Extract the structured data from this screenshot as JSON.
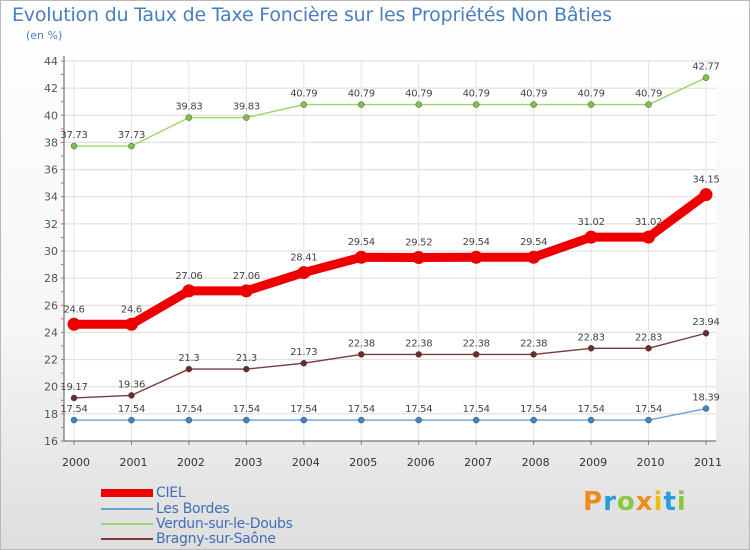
{
  "title": "Evolution du Taux de Taxe Foncière sur les Propriétés Non Bâties",
  "unit_label": "(en %)",
  "logo_text": "Proxiti",
  "logo_colors": [
    "#f08a1c",
    "#2b9be0",
    "#8cc63f",
    "#f08a1c",
    "#e8c012",
    "#2b9be0",
    "#8cc63f"
  ],
  "chart_data": {
    "type": "line",
    "title": "Evolution du Taux de Taxe Foncière sur les Propriétés Non Bâties",
    "ylabel": "(en %)",
    "xlabel": "",
    "categories": [
      "2000",
      "2001",
      "2002",
      "2003",
      "2004",
      "2005",
      "2006",
      "2007",
      "2008",
      "2009",
      "2010",
      "2011"
    ],
    "ylim": [
      16,
      44
    ],
    "yticks": [
      16,
      18,
      20,
      22,
      24,
      26,
      28,
      30,
      32,
      34,
      36,
      38,
      40,
      42,
      44
    ],
    "grid": true,
    "legend_position": "bottom-left",
    "series": [
      {
        "name": "Verdun-sur-le-Doubs",
        "color": "#9ad86a",
        "marker": "#7cc443",
        "weight": "thin",
        "values": [
          37.73,
          37.73,
          39.83,
          39.83,
          40.79,
          40.79,
          40.79,
          40.79,
          40.79,
          40.79,
          40.79,
          42.77
        ],
        "labels": [
          "37.73",
          "37.73",
          "39.83",
          "39.83",
          "40.79",
          "40.79",
          "40.79",
          "40.79",
          "40.79",
          "40.79",
          "40.79",
          "42.77"
        ]
      },
      {
        "name": "CIEL",
        "color": "#ee0000",
        "marker": "#ee0000",
        "weight": "thick",
        "values": [
          24.6,
          24.6,
          27.06,
          27.06,
          28.41,
          29.54,
          29.52,
          29.54,
          29.54,
          31.02,
          31.02,
          34.15
        ],
        "labels": [
          "24.6",
          "24.6",
          "27.06",
          "27.06",
          "28.41",
          "29.54",
          "29.52",
          "29.54",
          "29.54",
          "31.02",
          "31.02",
          "34.15"
        ]
      },
      {
        "name": "Bragny-sur-Saône",
        "color": "#7a3a3a",
        "marker": "#6e2b2b",
        "weight": "thin",
        "values": [
          19.17,
          19.36,
          21.3,
          21.3,
          21.73,
          22.38,
          22.38,
          22.38,
          22.38,
          22.83,
          22.83,
          23.94
        ],
        "labels": [
          "19.17",
          "19.36",
          "21.3",
          "21.3",
          "21.73",
          "22.38",
          "22.38",
          "22.38",
          "22.38",
          "22.83",
          "22.83",
          "23.94"
        ]
      },
      {
        "name": "Les Bordes",
        "color": "#6aa0d6",
        "marker": "#3f84c8",
        "weight": "thin",
        "values": [
          17.54,
          17.54,
          17.54,
          17.54,
          17.54,
          17.54,
          17.54,
          17.54,
          17.54,
          17.54,
          17.54,
          18.39
        ],
        "labels": [
          "17.54",
          "17.54",
          "17.54",
          "17.54",
          "17.54",
          "17.54",
          "17.54",
          "17.54",
          "17.54",
          "17.54",
          "17.54",
          "18.39"
        ]
      }
    ],
    "legend": [
      "CIEL",
      "Les Bordes",
      "Verdun-sur-le-Doubs",
      "Bragny-sur-Saône"
    ]
  }
}
